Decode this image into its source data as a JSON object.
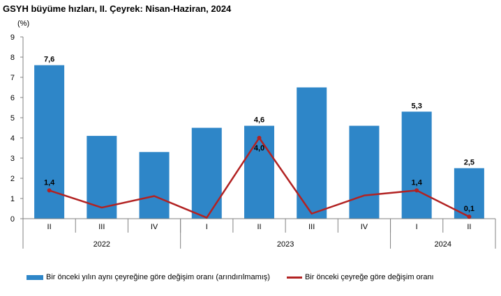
{
  "chart_data": {
    "type": "bar",
    "title": "GSYH büyüme hızları, II. Çeyrek: Nisan-Haziran, 2024",
    "ylabel": "(%)",
    "ylim": [
      0,
      9
    ],
    "yticks": [
      "0",
      "1",
      "2",
      "3",
      "4",
      "5",
      "6",
      "7",
      "8",
      "9"
    ],
    "categories": [
      "II",
      "III",
      "IV",
      "I",
      "II",
      "III",
      "IV",
      "I",
      "II"
    ],
    "year_groups": [
      {
        "label": "2022",
        "span": 3
      },
      {
        "label": "2023",
        "span": 4
      },
      {
        "label": "2024",
        "span": 2
      }
    ],
    "series": [
      {
        "name": "Bir önceki yılın aynı çeyreğine göre değişim oranı (arındırılmamış)",
        "kind": "bar",
        "color": "#2E86C8",
        "values": [
          7.6,
          4.1,
          3.3,
          4.5,
          4.6,
          6.5,
          4.6,
          5.3,
          2.5
        ],
        "data_labels": [
          "7,6",
          "",
          "",
          "",
          "4,6",
          "",
          "",
          "5,3",
          "2,5"
        ]
      },
      {
        "name": "Bir önceki çeyreğe göre değişim oranı",
        "kind": "line",
        "color": "#B22222",
        "values": [
          1.4,
          0.55,
          1.12,
          0.05,
          4.0,
          0.25,
          1.15,
          1.4,
          0.1
        ],
        "data_labels": [
          "1,4",
          "",
          "",
          "",
          "4,0",
          "",
          "",
          "1,4",
          "0,1"
        ]
      }
    ]
  }
}
